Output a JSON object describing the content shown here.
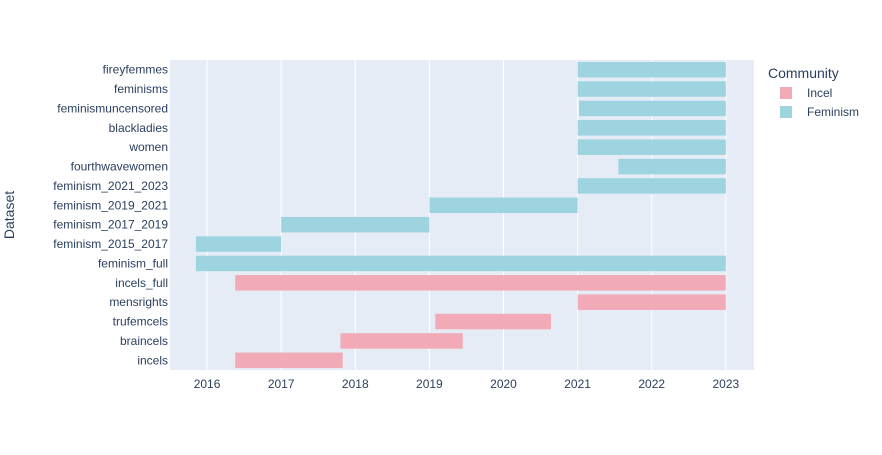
{
  "chart_data": {
    "type": "bar",
    "orientation": "horizontal-timeline",
    "ylabel": "Dataset",
    "xlabel": "",
    "xlim": [
      2015.5,
      2023.38
    ],
    "x_ticks": [
      "2016",
      "2017",
      "2018",
      "2019",
      "2020",
      "2021",
      "2022",
      "2023"
    ],
    "grid": true,
    "legend_position": "right",
    "legend_title": "Community",
    "colors": {
      "Incel": "#f2aab7",
      "Feminism": "#9dd4df",
      "plot_bg": "#e5ecf6",
      "grid": "#ffffff",
      "text": "#2a3f5f"
    },
    "series": [
      {
        "name": "Incel",
        "color": "#f2aab7"
      },
      {
        "name": "Feminism",
        "color": "#9dd4df"
      }
    ],
    "categories": [
      "fireyfemmes",
      "feminisms",
      "feminismuncensored",
      "blackladies",
      "women",
      "fourthwavewomen",
      "feminism_2021_2023",
      "feminism_2019_2021",
      "feminism_2017_2019",
      "feminism_2015_2017",
      "feminism_full",
      "incels_full",
      "mensrights",
      "trufemcels",
      "braincels",
      "incels"
    ],
    "bars": [
      {
        "dataset": "fireyfemmes",
        "community": "Feminism",
        "start": 2021.0,
        "end": 2023.0
      },
      {
        "dataset": "feminisms",
        "community": "Feminism",
        "start": 2021.0,
        "end": 2023.0
      },
      {
        "dataset": "feminismuncensored",
        "community": "Feminism",
        "start": 2021.02,
        "end": 2023.0
      },
      {
        "dataset": "blackladies",
        "community": "Feminism",
        "start": 2021.0,
        "end": 2023.0
      },
      {
        "dataset": "women",
        "community": "Feminism",
        "start": 2021.0,
        "end": 2023.0
      },
      {
        "dataset": "fourthwavewomen",
        "community": "Feminism",
        "start": 2021.55,
        "end": 2023.0
      },
      {
        "dataset": "feminism_2021_2023",
        "community": "Feminism",
        "start": 2021.0,
        "end": 2023.0
      },
      {
        "dataset": "feminism_2019_2021",
        "community": "Feminism",
        "start": 2019.0,
        "end": 2021.0
      },
      {
        "dataset": "feminism_2017_2019",
        "community": "Feminism",
        "start": 2017.0,
        "end": 2019.0
      },
      {
        "dataset": "feminism_2015_2017",
        "community": "Feminism",
        "start": 2015.85,
        "end": 2017.0
      },
      {
        "dataset": "feminism_full",
        "community": "Feminism",
        "start": 2015.85,
        "end": 2023.0
      },
      {
        "dataset": "incels_full",
        "community": "Incel",
        "start": 2016.38,
        "end": 2023.0
      },
      {
        "dataset": "mensrights",
        "community": "Incel",
        "start": 2021.0,
        "end": 2023.0
      },
      {
        "dataset": "trufemcels",
        "community": "Incel",
        "start": 2019.08,
        "end": 2020.64
      },
      {
        "dataset": "braincels",
        "community": "Incel",
        "start": 2017.8,
        "end": 2019.45
      },
      {
        "dataset": "incels",
        "community": "Incel",
        "start": 2016.38,
        "end": 2017.83
      }
    ]
  }
}
